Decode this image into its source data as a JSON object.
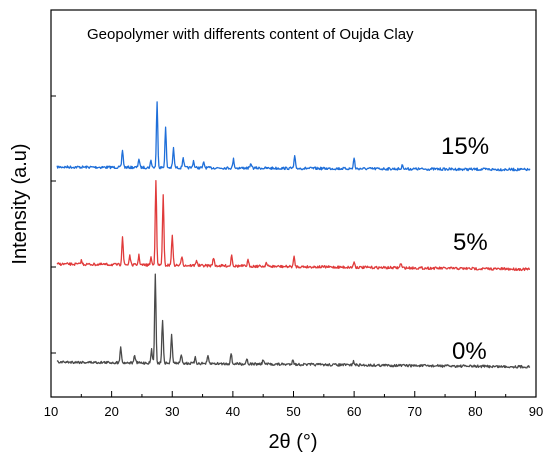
{
  "chart_data": {
    "type": "line",
    "title": "Geopolymer with differents content of Oujda Clay",
    "xlabel": "2θ (°)",
    "ylabel": "Intensity (a.u)",
    "xlim": [
      10,
      90
    ],
    "x_ticks": [
      "10",
      "20",
      "30",
      "40",
      "50",
      "60",
      "70",
      "80",
      "90"
    ],
    "y_ticks_labeled": false,
    "grid": false,
    "legend": "none",
    "series": [
      {
        "name": "15%",
        "color": "#1f6fd9",
        "baseline_start": 0.93,
        "baseline_end": 0.87,
        "peaks": [
          {
            "x": 21.8,
            "h": 0.2
          },
          {
            "x": 24.5,
            "h": 0.1
          },
          {
            "x": 26.5,
            "h": 0.08
          },
          {
            "x": 27.5,
            "h": 0.74
          },
          {
            "x": 28.9,
            "h": 0.45
          },
          {
            "x": 30.2,
            "h": 0.22
          },
          {
            "x": 31.8,
            "h": 0.12
          },
          {
            "x": 33.5,
            "h": 0.08
          },
          {
            "x": 35.2,
            "h": 0.06
          },
          {
            "x": 40.1,
            "h": 0.1
          },
          {
            "x": 43.0,
            "h": 0.05
          },
          {
            "x": 50.2,
            "h": 0.13
          },
          {
            "x": 60.0,
            "h": 0.12
          },
          {
            "x": 68.0,
            "h": 0.05
          }
        ]
      },
      {
        "name": "5%",
        "color": "#e03b3b",
        "baseline_start": 0.95,
        "baseline_end": 0.83,
        "peaks": [
          {
            "x": 15.0,
            "h": 0.04
          },
          {
            "x": 21.8,
            "h": 0.3
          },
          {
            "x": 23.0,
            "h": 0.1
          },
          {
            "x": 24.5,
            "h": 0.1
          },
          {
            "x": 26.5,
            "h": 0.08
          },
          {
            "x": 27.3,
            "h": 0.9
          },
          {
            "x": 28.5,
            "h": 0.73
          },
          {
            "x": 30.0,
            "h": 0.32
          },
          {
            "x": 31.6,
            "h": 0.1
          },
          {
            "x": 34.0,
            "h": 0.06
          },
          {
            "x": 36.8,
            "h": 0.09
          },
          {
            "x": 39.8,
            "h": 0.12
          },
          {
            "x": 42.5,
            "h": 0.06
          },
          {
            "x": 45.5,
            "h": 0.04
          },
          {
            "x": 50.1,
            "h": 0.1
          },
          {
            "x": 60.0,
            "h": 0.06
          },
          {
            "x": 67.7,
            "h": 0.05
          }
        ]
      },
      {
        "name": "0%",
        "color": "#4a4a4a",
        "baseline_start": 0.93,
        "baseline_end": 0.82,
        "peaks": [
          {
            "x": 21.5,
            "h": 0.18
          },
          {
            "x": 23.8,
            "h": 0.08
          },
          {
            "x": 26.6,
            "h": 0.14
          },
          {
            "x": 27.2,
            "h": 0.97
          },
          {
            "x": 28.4,
            "h": 0.47
          },
          {
            "x": 29.9,
            "h": 0.3
          },
          {
            "x": 31.5,
            "h": 0.1
          },
          {
            "x": 33.8,
            "h": 0.06
          },
          {
            "x": 35.9,
            "h": 0.08
          },
          {
            "x": 39.7,
            "h": 0.11
          },
          {
            "x": 42.3,
            "h": 0.06
          },
          {
            "x": 45.0,
            "h": 0.05
          },
          {
            "x": 49.9,
            "h": 0.06
          },
          {
            "x": 59.9,
            "h": 0.04
          }
        ]
      }
    ]
  }
}
